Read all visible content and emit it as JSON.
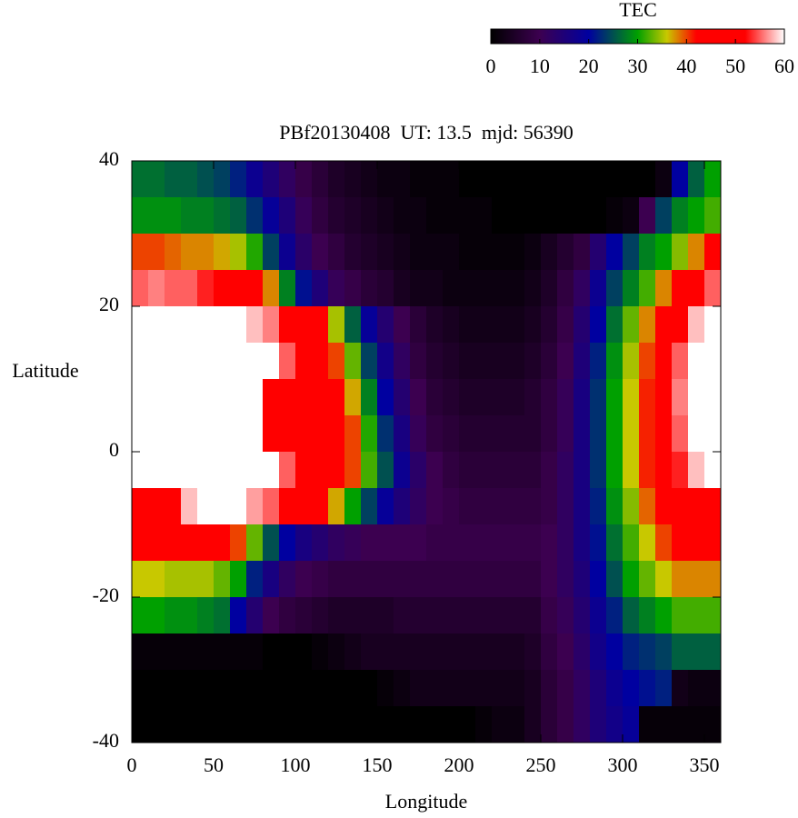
{
  "chart_data": {
    "type": "heatmap",
    "title": "PBf20130408  UT: 13.5  mjd: 56390",
    "x_label": "Longitude",
    "y_label": "Latitude",
    "colorbar_label": "TEC",
    "xlim": [
      0,
      360
    ],
    "ylim": [
      -40,
      40
    ],
    "xticks": [
      0,
      50,
      100,
      150,
      200,
      250,
      300,
      350
    ],
    "yticks": [
      -40,
      -20,
      0,
      20,
      40
    ],
    "zlim": [
      0,
      60
    ],
    "zticks": [
      0,
      10,
      20,
      30,
      40,
      50,
      60
    ],
    "colorscale": [
      [
        0,
        "#000000"
      ],
      [
        10,
        "#3c0050"
      ],
      [
        20,
        "#0000a0"
      ],
      [
        30,
        "#00a000"
      ],
      [
        36,
        "#c8c800"
      ],
      [
        42,
        "#ff0000"
      ],
      [
        52,
        "#ff0000"
      ],
      [
        60,
        "#ffffff"
      ]
    ],
    "x": [
      5,
      15,
      25,
      35,
      45,
      55,
      65,
      75,
      85,
      95,
      105,
      115,
      125,
      135,
      145,
      155,
      165,
      175,
      185,
      195,
      205,
      215,
      225,
      235,
      245,
      255,
      265,
      275,
      285,
      295,
      305,
      315,
      325,
      335,
      345,
      355
    ],
    "y": [
      37.5,
      32.5,
      27.5,
      22.5,
      17.5,
      12.5,
      7.5,
      2.5,
      -2.5,
      -7.5,
      -12.5,
      -17.5,
      -22.5,
      -27.5,
      -32.5,
      -37.5
    ],
    "z": [
      [
        27,
        27,
        26,
        26,
        25,
        24,
        22,
        18,
        15,
        12,
        9,
        7,
        5,
        4,
        3,
        2,
        2,
        1,
        1,
        1,
        0,
        0,
        0,
        0,
        0,
        0,
        0,
        0,
        0,
        0,
        0,
        0,
        2,
        20,
        26,
        30
      ],
      [
        29,
        29,
        29,
        28,
        28,
        27,
        26,
        23,
        19,
        15,
        11,
        8,
        6,
        5,
        4,
        3,
        2,
        2,
        1,
        1,
        1,
        1,
        0,
        0,
        0,
        0,
        0,
        0,
        0,
        1,
        2,
        10,
        24,
        28,
        30,
        32
      ],
      [
        40,
        40,
        39,
        38,
        38,
        37,
        35,
        31,
        24,
        18,
        13,
        10,
        8,
        6,
        5,
        4,
        3,
        2,
        2,
        2,
        1,
        1,
        1,
        1,
        2,
        4,
        6,
        8,
        14,
        20,
        24,
        28,
        30,
        34,
        38,
        42
      ],
      [
        55,
        56,
        55,
        55,
        53,
        52,
        50,
        48,
        38,
        28,
        21,
        15,
        11,
        9,
        7,
        6,
        4,
        3,
        3,
        2,
        2,
        2,
        2,
        2,
        3,
        5,
        8,
        12,
        18,
        24,
        28,
        32,
        38,
        44,
        50,
        55
      ],
      [
        60,
        60,
        60,
        60,
        60,
        60,
        60,
        58,
        56,
        52,
        48,
        45,
        35,
        26,
        19,
        14,
        10,
        7,
        5,
        4,
        3,
        3,
        3,
        3,
        4,
        6,
        9,
        14,
        20,
        27,
        33,
        38,
        45,
        52,
        58,
        60
      ],
      [
        60,
        60,
        60,
        60,
        60,
        60,
        60,
        60,
        60,
        55,
        48,
        46,
        40,
        33,
        24,
        17,
        12,
        8,
        6,
        5,
        4,
        4,
        4,
        4,
        5,
        7,
        10,
        15,
        22,
        29,
        35,
        40,
        47,
        55,
        60,
        60
      ],
      [
        60,
        60,
        60,
        60,
        60,
        60,
        60,
        60,
        52,
        48,
        48,
        48,
        44,
        37,
        28,
        20,
        14,
        10,
        7,
        6,
        5,
        5,
        5,
        5,
        6,
        8,
        11,
        16,
        23,
        30,
        36,
        41,
        48,
        56,
        60,
        60
      ],
      [
        60,
        60,
        60,
        60,
        60,
        60,
        60,
        60,
        48,
        47,
        48,
        48,
        45,
        40,
        31,
        23,
        16,
        11,
        8,
        7,
        6,
        6,
        6,
        6,
        6,
        8,
        11,
        16,
        23,
        30,
        36,
        41,
        48,
        55,
        60,
        60
      ],
      [
        60,
        60,
        60,
        60,
        60,
        60,
        60,
        60,
        60,
        55,
        52,
        50,
        47,
        40,
        32,
        25,
        18,
        13,
        10,
        8,
        7,
        7,
        7,
        7,
        7,
        9,
        12,
        16,
        23,
        30,
        36,
        41,
        48,
        53,
        58,
        60
      ],
      [
        48,
        50,
        52,
        58,
        60,
        60,
        60,
        57,
        55,
        52,
        48,
        43,
        37,
        30,
        24,
        19,
        15,
        12,
        10,
        9,
        8,
        8,
        8,
        8,
        8,
        9,
        12,
        16,
        22,
        29,
        34,
        39,
        45,
        49,
        50,
        50
      ],
      [
        46,
        45,
        45,
        45,
        45,
        46,
        40,
        33,
        25,
        20,
        16,
        14,
        12,
        11,
        10,
        10,
        10,
        10,
        9,
        9,
        9,
        9,
        9,
        9,
        9,
        10,
        12,
        16,
        21,
        27,
        32,
        36,
        40,
        44,
        45,
        46
      ],
      [
        36,
        36,
        35,
        35,
        35,
        33,
        30,
        22,
        16,
        12,
        10,
        9,
        8,
        8,
        8,
        8,
        8,
        8,
        8,
        8,
        8,
        8,
        8,
        8,
        8,
        10,
        12,
        15,
        20,
        25,
        30,
        33,
        36,
        38,
        38,
        38
      ],
      [
        30,
        30,
        29,
        29,
        28,
        27,
        20,
        14,
        10,
        8,
        7,
        6,
        5,
        5,
        5,
        5,
        6,
        6,
        6,
        6,
        6,
        6,
        6,
        6,
        6,
        9,
        11,
        14,
        18,
        22,
        26,
        28,
        30,
        32,
        32,
        32
      ],
      [
        1,
        1,
        1,
        1,
        1,
        1,
        1,
        1,
        0,
        0,
        0,
        1,
        2,
        3,
        4,
        4,
        4,
        4,
        4,
        4,
        4,
        4,
        4,
        4,
        5,
        8,
        10,
        13,
        17,
        20,
        22,
        23,
        24,
        26,
        26,
        26
      ],
      [
        0,
        0,
        0,
        0,
        0,
        0,
        0,
        0,
        0,
        0,
        0,
        0,
        0,
        0,
        0,
        1,
        2,
        3,
        3,
        3,
        3,
        3,
        3,
        3,
        4,
        7,
        9,
        12,
        15,
        18,
        20,
        21,
        22,
        3,
        2,
        2
      ],
      [
        0,
        0,
        0,
        0,
        0,
        0,
        0,
        0,
        0,
        0,
        0,
        0,
        0,
        0,
        0,
        0,
        0,
        0,
        0,
        0,
        0,
        1,
        2,
        2,
        4,
        7,
        9,
        12,
        15,
        17,
        19,
        1,
        1,
        1,
        1,
        1
      ]
    ]
  }
}
